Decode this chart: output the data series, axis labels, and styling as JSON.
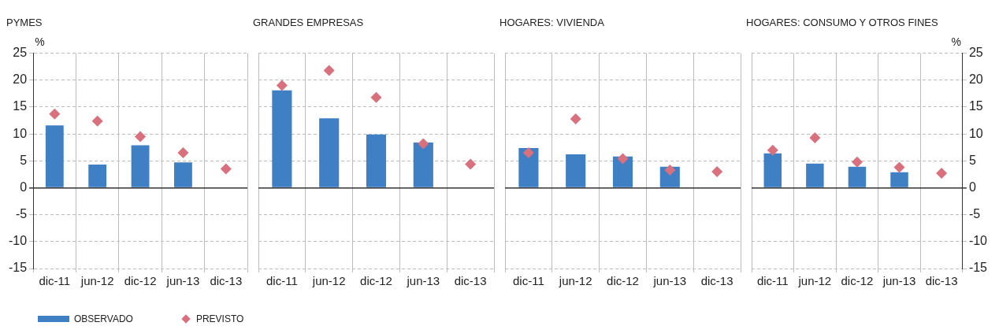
{
  "chart_data": [
    {
      "type": "bar",
      "title": "PYMES",
      "ylabel": "%",
      "categories": [
        "dic-11",
        "jun-12",
        "dic-12",
        "jun-13",
        "dic-13"
      ],
      "ylim": [
        -15,
        25
      ],
      "yticks": [
        -15,
        -10,
        -5,
        0,
        5,
        10,
        15,
        20,
        25
      ],
      "grid": true,
      "legend": "bottom left",
      "series": [
        {
          "name": "OBSERVADO",
          "color": "#3f7fc4",
          "values": [
            11.6,
            4.3,
            7.9,
            4.7,
            null
          ]
        },
        {
          "name": "PREVISTO",
          "type": "scatter",
          "marker": "diamond",
          "color": "#d9707e",
          "x": [
            "dic-11",
            "jun-12",
            "dic-12",
            "jun-13",
            "dic-13"
          ],
          "values": [
            13.7,
            12.4,
            9.5,
            6.5,
            3.5
          ]
        }
      ]
    },
    {
      "type": "bar",
      "title": "GRANDES EMPRESAS",
      "categories": [
        "dic-11",
        "jun-12",
        "dic-12",
        "jun-13",
        "dic-13"
      ],
      "ylim": [
        -15,
        25
      ],
      "yticks": [
        -15,
        -10,
        -5,
        0,
        5,
        10,
        15,
        20,
        25
      ],
      "grid": true,
      "tick_labels": "x",
      "series": [
        {
          "color": "#3f7fc4",
          "values": [
            18.1,
            12.9,
            9.9,
            8.4,
            null
          ]
        },
        {
          "type": "scatter",
          "marker": "diamond",
          "color": "#d9707e",
          "x": [
            "dic-11",
            "jun-12",
            "dic-12",
            "jun-13",
            "dic-13"
          ],
          "values": [
            19.0,
            21.8,
            16.8,
            8.2,
            4.4
          ]
        }
      ]
    },
    {
      "type": "bar",
      "title": "HOGARES: VIVIENDA",
      "categories": [
        "dic-11",
        "jun-12",
        "dic-12",
        "jun-13",
        "dic-13"
      ],
      "ylim": [
        -15,
        25
      ],
      "yticks": [
        -15,
        -10,
        -5,
        0,
        5,
        10,
        15,
        20,
        25
      ],
      "grid": true,
      "tick_labels": "x",
      "series": [
        {
          "color": "#3f7fc4",
          "values": [
            7.4,
            6.2,
            5.8,
            3.9,
            null
          ]
        },
        {
          "type": "scatter",
          "marker": "diamond",
          "color": "#d9707e",
          "x": [
            "dic-11",
            "jun-12",
            "dic-12",
            "jun-13",
            "dic-13"
          ],
          "values": [
            6.5,
            12.8,
            5.4,
            3.3,
            3.0
          ]
        }
      ]
    },
    {
      "type": "bar",
      "title": "HOGARES: CONSUMO Y OTROS FINES",
      "y2label": "%",
      "categories": [
        "dic-11",
        "jun-12",
        "dic-12",
        "jun-13",
        "dic-13"
      ],
      "y2lim": [
        -15,
        25
      ],
      "y2ticks": [
        -15,
        -10,
        -5,
        0,
        5,
        10,
        15,
        20,
        25
      ],
      "grid": true,
      "series": [
        {
          "axis": "y2",
          "color": "#3f7fc4",
          "values": [
            6.4,
            4.5,
            3.9,
            2.9,
            null
          ]
        },
        {
          "type": "scatter",
          "axis": "y2",
          "marker": "diamond",
          "color": "#d9707e",
          "x": [
            "dic-11",
            "jun-12",
            "dic-12",
            "jun-13",
            "dic-13"
          ],
          "values": [
            7.0,
            9.3,
            4.8,
            3.8,
            2.7
          ]
        }
      ]
    }
  ]
}
